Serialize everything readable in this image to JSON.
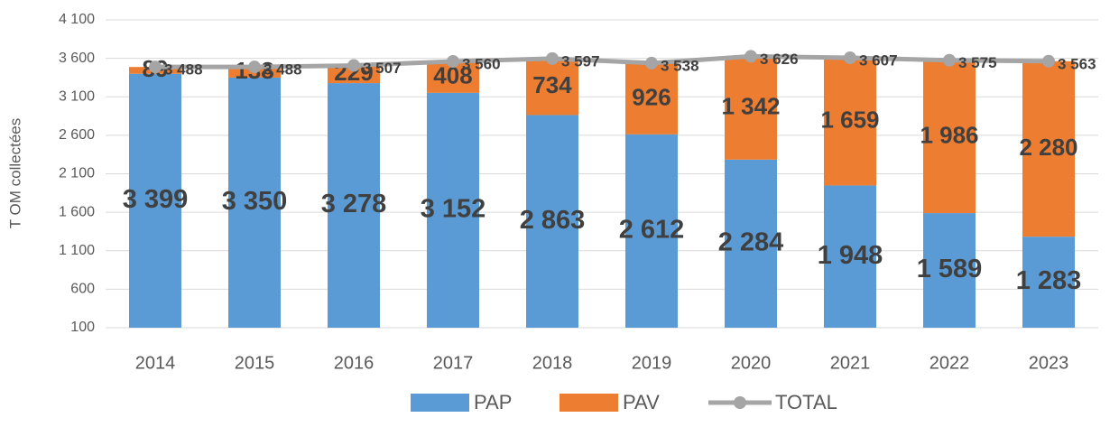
{
  "chart_data": {
    "type": "bar",
    "stacked": true,
    "y_label": "T OM collectées",
    "categories": [
      "2014",
      "2015",
      "2016",
      "2017",
      "2018",
      "2019",
      "2020",
      "2021",
      "2022",
      "2023"
    ],
    "series": [
      {
        "name": "PAP",
        "color": "#5b9bd5",
        "values": [
          3399,
          3350,
          3278,
          3152,
          2863,
          2612,
          2284,
          1948,
          1589,
          1283
        ],
        "value_labels": [
          "3 399",
          "3 350",
          "3 278",
          "3 152",
          "2 863",
          "2 612",
          "2 284",
          "1 948",
          "1 589",
          "1 283"
        ]
      },
      {
        "name": "PAV",
        "color": "#ed7d31",
        "values": [
          89,
          138,
          229,
          408,
          734,
          926,
          1342,
          1659,
          1986,
          2280
        ],
        "value_labels": [
          "89",
          "138",
          "229",
          "408",
          "734",
          "926",
          "1 342",
          "1 659",
          "1 986",
          "2 280"
        ]
      },
      {
        "name": "TOTAL",
        "type": "line",
        "color": "#a5a5a5",
        "values": [
          3488,
          3488,
          3507,
          3560,
          3597,
          3538,
          3626,
          3607,
          3575,
          3563
        ],
        "value_labels": [
          "3 488",
          "3 488",
          "3 507",
          "3 560",
          "3 597",
          "3 538",
          "3 626",
          "3 607",
          "3 575",
          "3 563"
        ]
      }
    ],
    "ylim": [
      100,
      4100
    ],
    "yticks": [
      100,
      600,
      {
        "value": 1100,
        "label": "1 100"
      },
      {
        "value": 1600,
        "label": "1 600"
      },
      {
        "value": 2100,
        "label": "2 100"
      },
      {
        "value": 2600,
        "label": "2 600"
      },
      {
        "value": 3100,
        "label": "3 100"
      },
      {
        "value": 3600,
        "label": "3 600"
      },
      {
        "value": 4100,
        "label": "4 100"
      }
    ],
    "grid": true,
    "legend": "bottom"
  }
}
